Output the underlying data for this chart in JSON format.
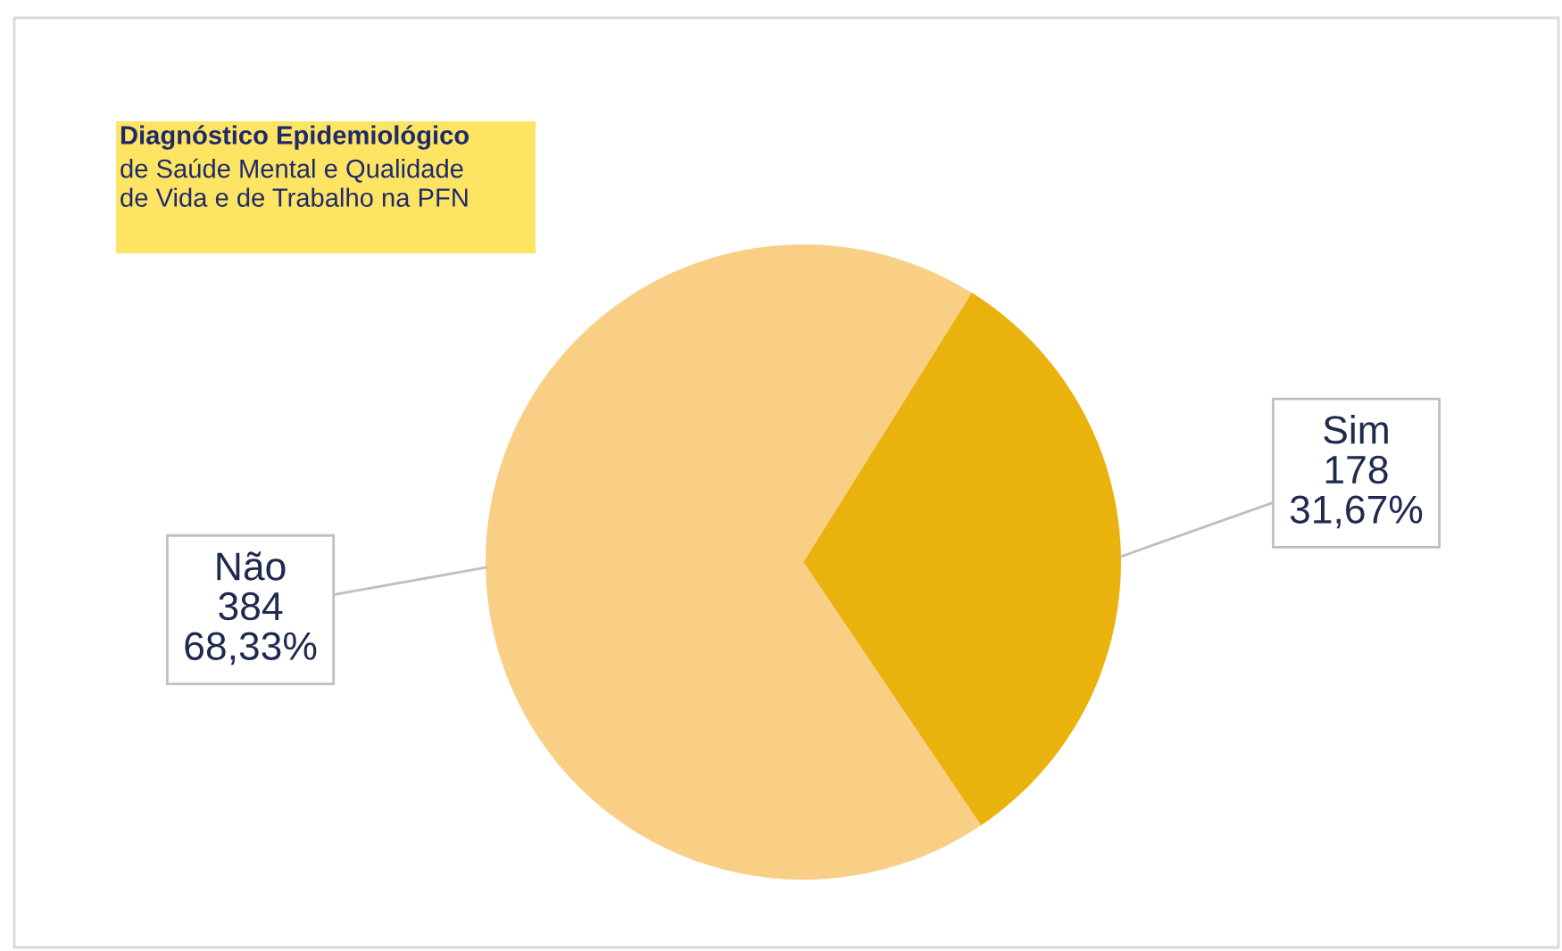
{
  "chart_data": {
    "type": "pie",
    "title": "Diagnóstico Epidemiológico",
    "subtitle": "de Saúde Mental e Qualidade\nde Vida e de Trabalho na PFN",
    "categories": [
      "Sim",
      "Não"
    ],
    "values": [
      31.67,
      68.33
    ],
    "colors": [
      "#eab20c",
      "#f8cf84"
    ],
    "value_labels": [
      "178\n31,67%",
      "384\n68,33%"
    ]
  }
}
